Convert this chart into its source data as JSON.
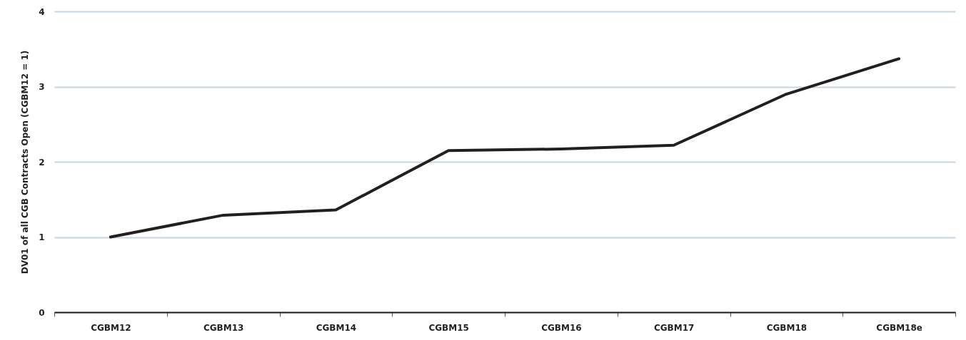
{
  "chart_data": {
    "type": "line",
    "ylabel": "DV01 of all CGB Contracts Open (CGBM12 = 1)",
    "categories": [
      "CGBM12",
      "CGBM13",
      "CGBM14",
      "CGBM15",
      "CGBM16",
      "CGBM17",
      "CGBM18",
      "CGBM18e"
    ],
    "series": [
      {
        "color": "#231f20",
        "values": [
          1.0,
          1.29,
          1.36,
          2.15,
          2.17,
          2.22,
          2.9,
          3.37
        ]
      }
    ],
    "ylim": [
      0,
      4
    ],
    "yticks": [
      0,
      1,
      2,
      3,
      4
    ],
    "grid": "y",
    "marker": "none",
    "line_style": "solid"
  }
}
